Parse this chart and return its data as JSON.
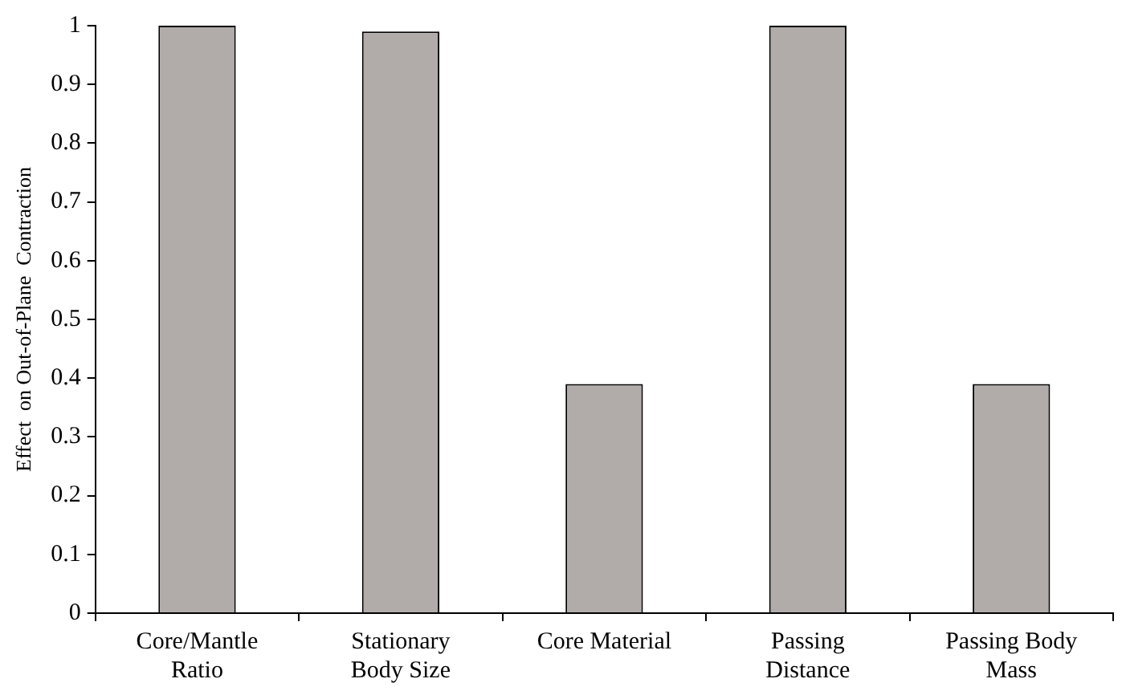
{
  "chart_data": {
    "type": "bar",
    "ylabel": "Effect  on Out-of-Plane  Contraction",
    "categories": [
      "Core/Mantle Ratio",
      "Stationary Body Size",
      "Core Material",
      "Passing Distance",
      "Passing Body Mass"
    ],
    "values": [
      1,
      0.99,
      0.39,
      1,
      0.39
    ],
    "color": "#b1acaa",
    "ylim": [
      0,
      1
    ],
    "yticks": [
      0,
      0.1,
      0.2,
      0.3,
      0.4,
      0.5,
      0.6,
      0.7,
      0.8,
      0.9,
      1
    ],
    "grid": false,
    "legend": false
  }
}
